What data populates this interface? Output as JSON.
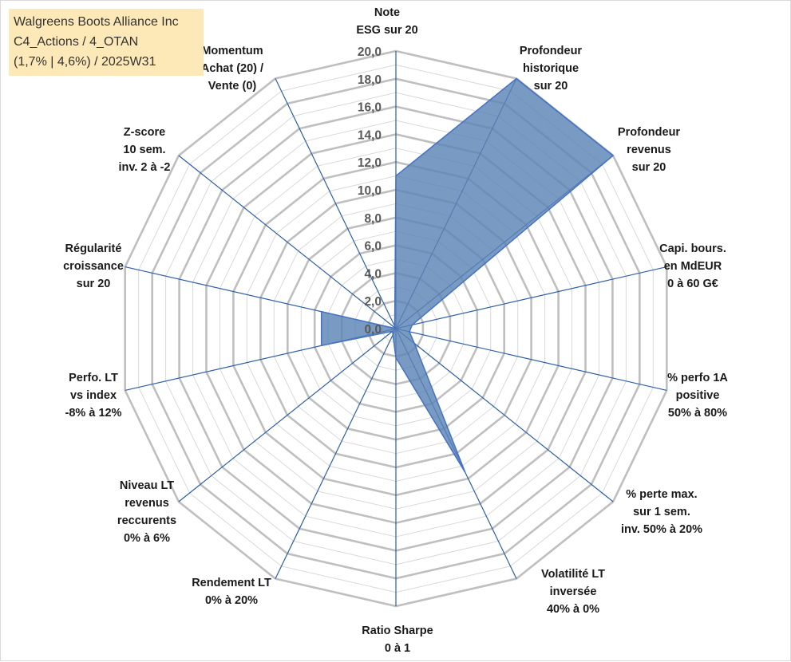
{
  "colors": {
    "grid": "#bfbfbf",
    "spoke": "#2e5fa8",
    "fill": "#5b84b5",
    "fill_stroke": "#4472c4",
    "title_bg": "#fde9b8"
  },
  "chart_data": {
    "type": "radar",
    "title_lines": [
      "Walgreens Boots Alliance Inc",
      "C4_Actions / 4_OTAN",
      "(1,7% | 4,6%) / 2025W31"
    ],
    "axis_range": [
      0,
      20
    ],
    "grid_step": 1,
    "tick_values": [
      0,
      2,
      4,
      6,
      8,
      10,
      12,
      14,
      16,
      18,
      20
    ],
    "tick_labels": [
      "0,0",
      "2,0",
      "4,0",
      "6,0",
      "8,0",
      "10,0",
      "12,0",
      "14,0",
      "16,0",
      "18,0",
      "20,0"
    ],
    "legend": "none",
    "axes": [
      {
        "label": [
          "Note",
          "ESG sur 20"
        ],
        "value": 11
      },
      {
        "label": [
          "Profondeur",
          "historique",
          "sur 20"
        ],
        "value": 20
      },
      {
        "label": [
          "Profondeur",
          "revenus",
          "sur 20"
        ],
        "value": 20
      },
      {
        "label": [
          "Capi. bours.",
          "en MdEUR",
          "0 à 60 G€"
        ],
        "value": 1.2
      },
      {
        "label": [
          "% perfo 1A",
          "positive",
          "50% à 80%"
        ],
        "value": 1
      },
      {
        "label": [
          "% perte max.",
          "sur 1 sem.",
          "inv. 50% à 20%"
        ],
        "value": 1.7
      },
      {
        "label": [
          "Volatilité LT",
          "inversée",
          "40% à 0%"
        ],
        "value": 11.5
      },
      {
        "label": [
          "Ratio Sharpe",
          "0 à 1"
        ],
        "value": 2.1
      },
      {
        "label": [
          "Rendement LT",
          "0% à 20%"
        ],
        "value": 0.5
      },
      {
        "label": [
          "Niveau LT",
          "revenus",
          "reccurents",
          "0% à 6%"
        ],
        "value": 0.3
      },
      {
        "label": [
          "Perfo. LT",
          "vs index",
          "-8% à 12%"
        ],
        "value": 5.5
      },
      {
        "label": [
          "Régularité",
          "croissance",
          "sur 20"
        ],
        "value": 5.5
      },
      {
        "label": [
          "Z-score",
          "10 sem.",
          "inv. 2 à -2"
        ],
        "value": 0
      },
      {
        "label": [
          "Momentum",
          "Achat (20) /",
          "Vente (0)"
        ],
        "value": 0.2
      }
    ]
  }
}
